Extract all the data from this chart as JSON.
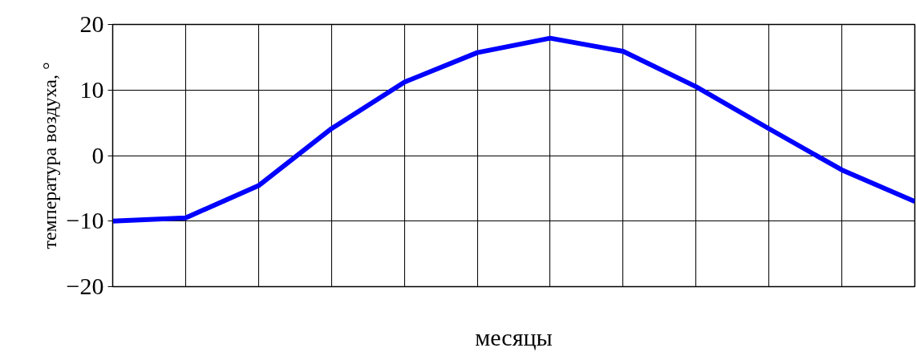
{
  "chart_data": {
    "type": "line",
    "xlabel": "месяцы",
    "ylabel": "температура воздуха, °",
    "categories": [
      null,
      null,
      null,
      null,
      null,
      null,
      null,
      null,
      null,
      null,
      null,
      null
    ],
    "series": [
      {
        "color": "#0000ff",
        "values": [
          -10,
          -9.5,
          -4.6,
          4.1,
          11.2,
          15.7,
          17.9,
          15.9,
          10.5,
          4.1,
          -2.2,
          -7.0
        ]
      }
    ],
    "ylim": [
      -20,
      20
    ],
    "yticks": [
      -20,
      -10,
      0,
      10,
      20
    ],
    "grid": true,
    "marker": "none",
    "line_style": "solid"
  }
}
